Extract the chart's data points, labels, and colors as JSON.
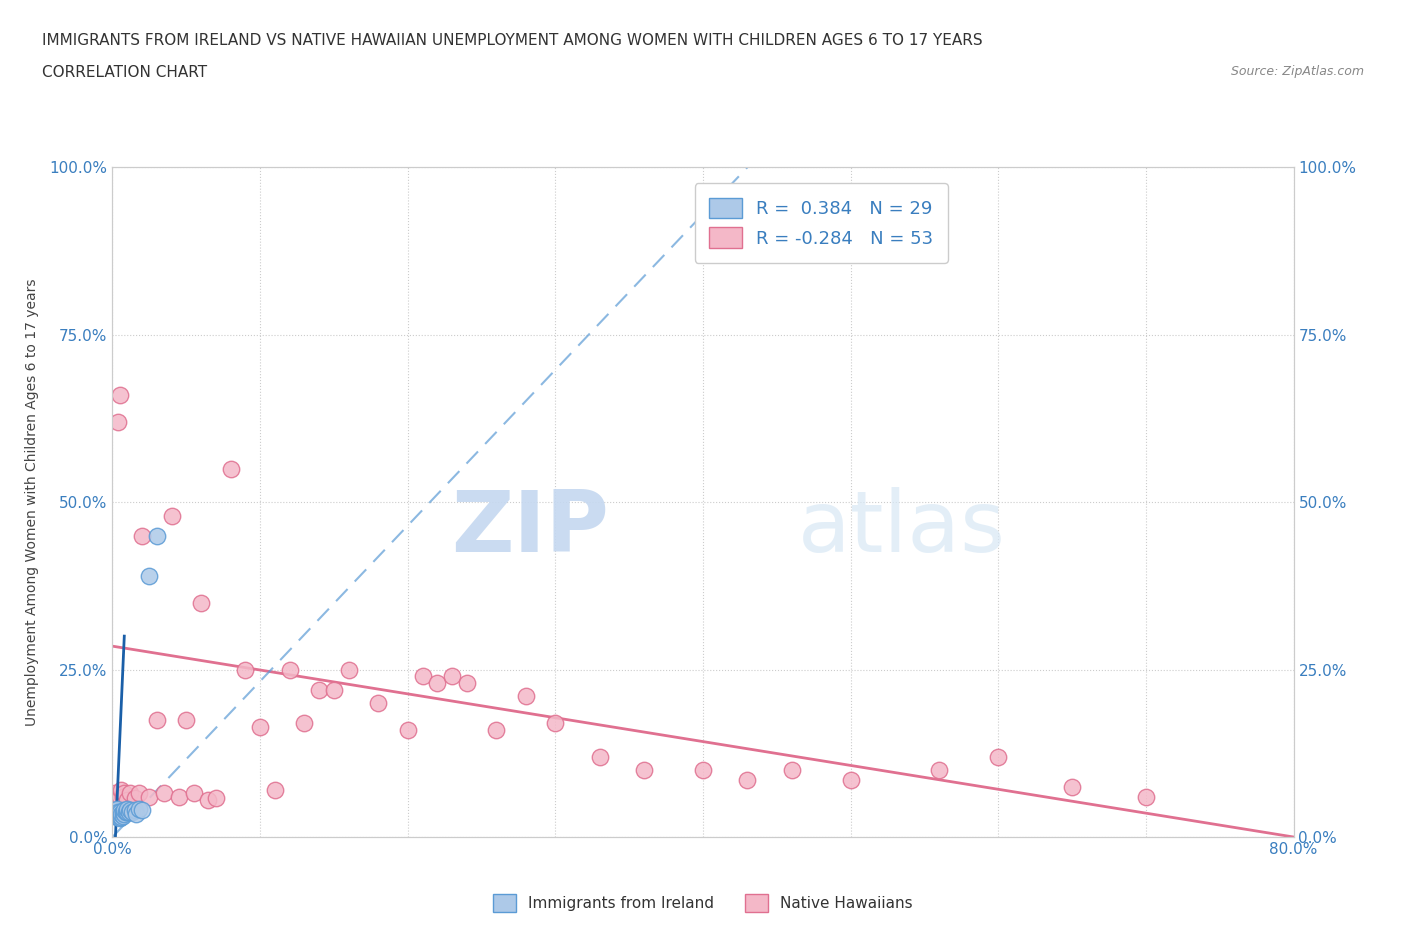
{
  "title": "IMMIGRANTS FROM IRELAND VS NATIVE HAWAIIAN UNEMPLOYMENT AMONG WOMEN WITH CHILDREN AGES 6 TO 17 YEARS",
  "subtitle": "CORRELATION CHART",
  "source": "Source: ZipAtlas.com",
  "ylabel": "Unemployment Among Women with Children Ages 6 to 17 years",
  "xlim": [
    0.0,
    0.8
  ],
  "ylim": [
    0.0,
    1.0
  ],
  "xticks": [
    0.0,
    0.1,
    0.2,
    0.3,
    0.4,
    0.5,
    0.6,
    0.7,
    0.8
  ],
  "xticklabels": [
    "0.0%",
    "",
    "",
    "",
    "",
    "",
    "",
    "",
    "80.0%"
  ],
  "yticks": [
    0.0,
    0.25,
    0.5,
    0.75,
    1.0
  ],
  "yticklabels_left": [
    "0.0%",
    "25.0%",
    "50.0%",
    "75.0%",
    "100.0%"
  ],
  "yticklabels_right": [
    "0.0%",
    "25.0%",
    "50.0%",
    "75.0%",
    "100.0%"
  ],
  "watermark_zip": "ZIP",
  "watermark_atlas": "atlas",
  "legend_r1": "R =  0.384   N = 29",
  "legend_r2": "R = -0.284   N = 53",
  "ireland_color": "#adc9e8",
  "ireland_edge": "#5b9bd5",
  "hawaii_color": "#f4b8c8",
  "hawaii_edge": "#e07090",
  "trendline_ireland_dash_color": "#5b9bd5",
  "trendline_ireland_solid_color": "#1a5fa8",
  "trendline_hawaii_color": "#e07090",
  "ireland_scatter_x": [
    0.002,
    0.002,
    0.003,
    0.003,
    0.003,
    0.004,
    0.004,
    0.004,
    0.005,
    0.005,
    0.005,
    0.006,
    0.006,
    0.007,
    0.007,
    0.008,
    0.008,
    0.009,
    0.01,
    0.01,
    0.011,
    0.012,
    0.013,
    0.015,
    0.016,
    0.018,
    0.02,
    0.025,
    0.03
  ],
  "ireland_scatter_y": [
    0.035,
    0.04,
    0.03,
    0.038,
    0.042,
    0.03,
    0.035,
    0.038,
    0.028,
    0.032,
    0.038,
    0.03,
    0.035,
    0.032,
    0.038,
    0.035,
    0.04,
    0.038,
    0.038,
    0.042,
    0.038,
    0.04,
    0.038,
    0.04,
    0.035,
    0.042,
    0.04,
    0.39,
    0.45
  ],
  "hawaii_scatter_x": [
    0.001,
    0.002,
    0.003,
    0.004,
    0.004,
    0.005,
    0.005,
    0.006,
    0.007,
    0.008,
    0.01,
    0.012,
    0.015,
    0.018,
    0.02,
    0.025,
    0.03,
    0.035,
    0.04,
    0.045,
    0.05,
    0.055,
    0.06,
    0.065,
    0.07,
    0.08,
    0.09,
    0.1,
    0.11,
    0.12,
    0.13,
    0.14,
    0.15,
    0.16,
    0.18,
    0.2,
    0.21,
    0.22,
    0.23,
    0.24,
    0.26,
    0.28,
    0.3,
    0.33,
    0.36,
    0.4,
    0.43,
    0.46,
    0.5,
    0.56,
    0.6,
    0.65,
    0.7
  ],
  "hawaii_scatter_y": [
    0.06,
    0.065,
    0.05,
    0.055,
    0.62,
    0.06,
    0.66,
    0.07,
    0.06,
    0.065,
    0.055,
    0.065,
    0.058,
    0.065,
    0.45,
    0.06,
    0.175,
    0.065,
    0.48,
    0.06,
    0.175,
    0.065,
    0.35,
    0.055,
    0.058,
    0.55,
    0.25,
    0.165,
    0.07,
    0.25,
    0.17,
    0.22,
    0.22,
    0.25,
    0.2,
    0.16,
    0.24,
    0.23,
    0.24,
    0.23,
    0.16,
    0.21,
    0.17,
    0.12,
    0.1,
    0.1,
    0.085,
    0.1,
    0.085,
    0.1,
    0.12,
    0.075,
    0.06
  ],
  "hawaii_trendline_x": [
    0.0,
    0.8
  ],
  "hawaii_trendline_y": [
    0.285,
    0.0
  ],
  "ireland_dash_trendline_x": [
    0.0,
    0.43
  ],
  "ireland_dash_trendline_y": [
    0.0,
    1.0
  ],
  "ireland_solid_trendline_x": [
    0.002,
    0.008
  ],
  "ireland_solid_trendline_y": [
    0.0,
    0.3
  ]
}
